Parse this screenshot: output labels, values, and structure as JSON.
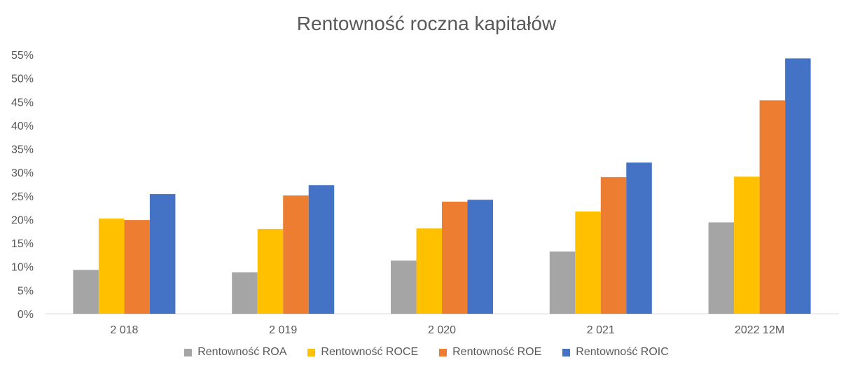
{
  "chart_data": {
    "type": "bar",
    "title": "Rentowność roczna kapitałów",
    "categories": [
      "2 018",
      "2 019",
      "2 020",
      "2 021",
      "2022 12M"
    ],
    "series": [
      {
        "name": "Rentowność ROA",
        "color": "#A5A5A5",
        "values": [
          9.3,
          8.8,
          11.3,
          13.2,
          19.4
        ]
      },
      {
        "name": "Rentowność ROCE",
        "color": "#FFC000",
        "values": [
          20.2,
          18.0,
          18.1,
          21.7,
          29.1
        ]
      },
      {
        "name": "Rentowność ROE",
        "color": "#ED7D31",
        "values": [
          19.9,
          25.1,
          23.8,
          29.0,
          45.3
        ]
      },
      {
        "name": "Rentowność ROIC",
        "color": "#4472C4",
        "values": [
          25.4,
          27.3,
          24.2,
          32.1,
          54.2
        ]
      }
    ],
    "y_ticks": [
      "0%",
      "5%",
      "10%",
      "15%",
      "20%",
      "25%",
      "30%",
      "35%",
      "40%",
      "45%",
      "50%",
      "55%"
    ],
    "ylim": [
      0,
      55
    ],
    "grid": false,
    "legend_position": "bottom"
  }
}
